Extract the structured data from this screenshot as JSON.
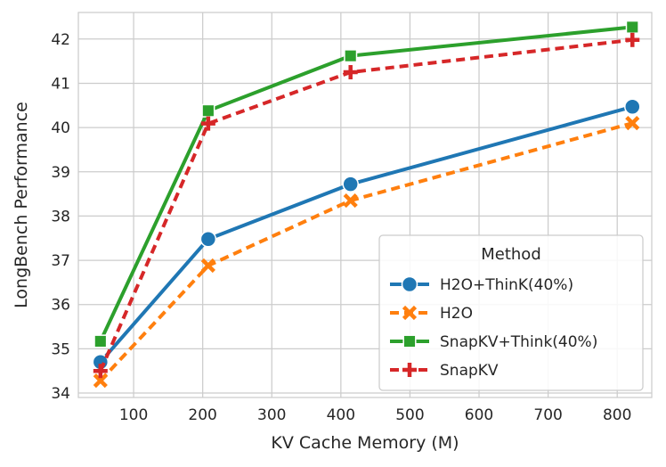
{
  "chart_data": {
    "type": "line",
    "xlabel": "KV Cache Memory (M)",
    "ylabel": "LongBench Performance",
    "xlim": [
      20,
      850
    ],
    "ylim": [
      33.9,
      42.6
    ],
    "xticks": [
      100,
      200,
      300,
      400,
      500,
      600,
      700,
      800
    ],
    "yticks": [
      34,
      35,
      36,
      37,
      38,
      39,
      40,
      41,
      42
    ],
    "grid": true,
    "legend": {
      "title": "Method",
      "placement": "lower-right"
    },
    "x": [
      52,
      208,
      414,
      822
    ],
    "series": [
      {
        "name": "H2O+ThinK(40%)",
        "values": [
          34.7,
          37.48,
          38.72,
          40.47
        ],
        "color": "#1f77b4",
        "marker": "circle",
        "dash": "solid"
      },
      {
        "name": "H2O",
        "values": [
          34.28,
          36.88,
          38.35,
          40.1
        ],
        "color": "#ff7f0e",
        "marker": "x",
        "dash": "dashed"
      },
      {
        "name": "SnapKV+Think(40%)",
        "values": [
          35.17,
          40.38,
          41.62,
          42.27
        ],
        "color": "#2ca02c",
        "marker": "square",
        "dash": "solid"
      },
      {
        "name": "SnapKV",
        "values": [
          34.5,
          40.09,
          41.25,
          41.98
        ],
        "color": "#d62728",
        "marker": "plus",
        "dash": "dashed"
      }
    ]
  }
}
